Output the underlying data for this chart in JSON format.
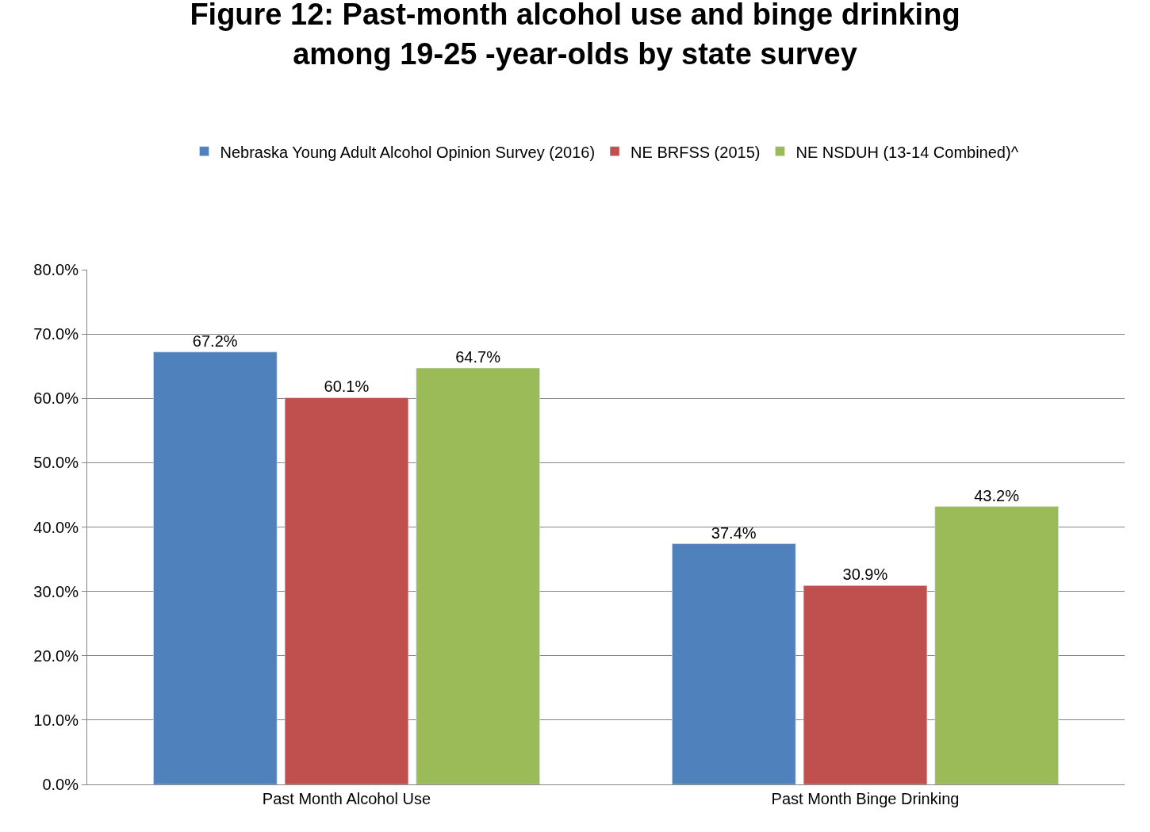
{
  "chart_data": {
    "type": "bar",
    "title": "Figure 12: Past-month alcohol use and binge drinking\namong 19-25 -year-olds by state survey",
    "categories": [
      "Past Month Alcohol Use",
      "Past Month Binge Drinking"
    ],
    "series": [
      {
        "name": "Nebraska Young Adult Alcohol Opinion Survey (2016)",
        "color": "#4f81bd",
        "values": [
          67.2,
          37.4
        ],
        "value_labels": [
          "67.2%",
          "37.4%"
        ]
      },
      {
        "name": "NE BRFSS (2015)",
        "color": "#c0504d",
        "values": [
          60.1,
          30.9
        ],
        "value_labels": [
          "60.1%",
          "30.9%"
        ]
      },
      {
        "name": "NE NSDUH (13-14 Combined)^",
        "color": "#9bbb59",
        "values": [
          64.7,
          43.2
        ],
        "value_labels": [
          "64.7%",
          "43.2%"
        ]
      }
    ],
    "ylim": [
      0,
      80
    ],
    "yticks": [
      {
        "value": 0,
        "label": "0.0%"
      },
      {
        "value": 10,
        "label": "10.0%"
      },
      {
        "value": 20,
        "label": "20.0%"
      },
      {
        "value": 30,
        "label": "30.0%"
      },
      {
        "value": 40,
        "label": "40.0%"
      },
      {
        "value": 50,
        "label": "50.0%"
      },
      {
        "value": 60,
        "label": "60.0%"
      },
      {
        "value": 70,
        "label": "70.0%"
      },
      {
        "value": 80,
        "label": "80.0%"
      }
    ],
    "grid": "y",
    "legend": "top"
  }
}
